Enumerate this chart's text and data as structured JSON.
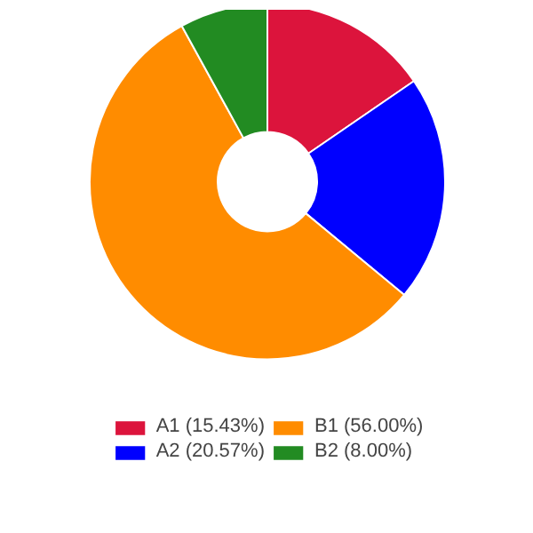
{
  "chart_data": {
    "type": "donut",
    "categories": [
      "A1 (15.43%)",
      "A2 (20.57%)",
      "B1 (56.00%)",
      "B2 (8.00%)"
    ],
    "values": [
      15.43,
      20.57,
      56.0,
      8.0
    ],
    "colors": [
      "#dc143c",
      "#0000ff",
      "#ff8c00",
      "#228b22"
    ],
    "legend": "bottom"
  }
}
